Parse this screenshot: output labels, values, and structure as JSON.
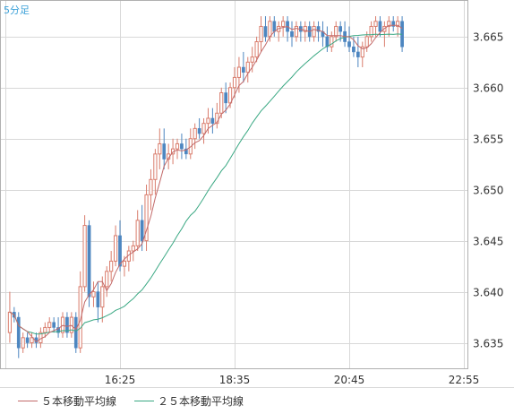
{
  "chart_data": {
    "type": "candlestick",
    "period_label": "5分足",
    "y_ticks": [
      "3.665",
      "3.660",
      "3.655",
      "3.650",
      "3.645",
      "3.640",
      "3.635"
    ],
    "x_ticks": [
      "16:25",
      "18:35",
      "20:45",
      "22:55"
    ],
    "ylim": [
      3.6325,
      3.6685
    ],
    "grid": true,
    "legend_position": "bottom-left",
    "legend": [
      {
        "name": "５本移動平均線",
        "color": "#c26a6a"
      },
      {
        "name": "２５本移動平均線",
        "color": "#3aa883"
      }
    ],
    "colors": {
      "up": "#d97c6c",
      "down": "#4d86c0",
      "grid": "#d8d8d8",
      "frame": "#b0b0b0"
    },
    "candles_ohlc": [
      [
        3.636,
        3.64,
        3.635,
        3.638
      ],
      [
        3.638,
        3.6385,
        3.637,
        3.6375
      ],
      [
        3.6375,
        3.638,
        3.6335,
        3.6345
      ],
      [
        3.6345,
        3.636,
        3.634,
        3.6355
      ],
      [
        3.6355,
        3.636,
        3.6345,
        3.635
      ],
      [
        3.635,
        3.636,
        3.6345,
        3.6355
      ],
      [
        3.6355,
        3.636,
        3.6345,
        3.635
      ],
      [
        3.635,
        3.6365,
        3.6345,
        3.636
      ],
      [
        3.636,
        3.637,
        3.6355,
        3.6365
      ],
      [
        3.6365,
        3.6375,
        3.636,
        3.637
      ],
      [
        3.637,
        3.6375,
        3.636,
        3.6365
      ],
      [
        3.6365,
        3.6375,
        3.6355,
        3.636
      ],
      [
        3.636,
        3.638,
        3.6355,
        3.6375
      ],
      [
        3.6375,
        3.638,
        3.6355,
        3.636
      ],
      [
        3.636,
        3.638,
        3.6355,
        3.6375
      ],
      [
        3.6375,
        3.638,
        3.634,
        3.6345
      ],
      [
        3.6345,
        3.642,
        3.634,
        3.6405
      ],
      [
        3.6405,
        3.6475,
        3.64,
        3.6465
      ],
      [
        3.6465,
        3.647,
        3.6385,
        3.6395
      ],
      [
        3.6395,
        3.641,
        3.6385,
        3.64
      ],
      [
        3.64,
        3.641,
        3.637,
        3.6385
      ],
      [
        3.6385,
        3.6415,
        3.637,
        3.6405
      ],
      [
        3.6405,
        3.6425,
        3.6395,
        3.642
      ],
      [
        3.642,
        3.644,
        3.641,
        3.643
      ],
      [
        3.643,
        3.6465,
        3.6425,
        3.6455
      ],
      [
        3.6455,
        3.647,
        3.642,
        3.6425
      ],
      [
        3.6425,
        3.6435,
        3.6415,
        3.643
      ],
      [
        3.643,
        3.6445,
        3.642,
        3.644
      ],
      [
        3.644,
        3.645,
        3.643,
        3.6445
      ],
      [
        3.6445,
        3.648,
        3.644,
        3.647
      ],
      [
        3.647,
        3.6485,
        3.644,
        3.645
      ],
      [
        3.645,
        3.6505,
        3.644,
        3.6495
      ],
      [
        3.6495,
        3.652,
        3.648,
        3.651
      ],
      [
        3.651,
        3.654,
        3.6495,
        3.6535
      ],
      [
        3.6535,
        3.656,
        3.652,
        3.6545
      ],
      [
        3.6545,
        3.656,
        3.652,
        3.653
      ],
      [
        3.653,
        3.6545,
        3.652,
        3.6535
      ],
      [
        3.6535,
        3.655,
        3.6525,
        3.654
      ],
      [
        3.654,
        3.655,
        3.653,
        3.6545
      ],
      [
        3.6545,
        3.6555,
        3.653,
        3.654
      ],
      [
        3.654,
        3.655,
        3.653,
        3.6535
      ],
      [
        3.6535,
        3.656,
        3.653,
        3.655
      ],
      [
        3.655,
        3.6565,
        3.654,
        3.656
      ],
      [
        3.656,
        3.657,
        3.655,
        3.6555
      ],
      [
        3.6555,
        3.657,
        3.6545,
        3.6565
      ],
      [
        3.6565,
        3.658,
        3.6555,
        3.657
      ],
      [
        3.657,
        3.658,
        3.6555,
        3.6565
      ],
      [
        3.6565,
        3.6585,
        3.656,
        3.6575
      ],
      [
        3.6575,
        3.66,
        3.657,
        3.6595
      ],
      [
        3.6595,
        3.6605,
        3.6575,
        3.6585
      ],
      [
        3.6585,
        3.6605,
        3.658,
        3.66
      ],
      [
        3.66,
        3.662,
        3.659,
        3.661
      ],
      [
        3.661,
        3.663,
        3.6595,
        3.662
      ],
      [
        3.662,
        3.6635,
        3.6605,
        3.6615
      ],
      [
        3.6615,
        3.663,
        3.6605,
        3.6625
      ],
      [
        3.6625,
        3.664,
        3.6615,
        3.663
      ],
      [
        3.663,
        3.665,
        3.6625,
        3.6645
      ],
      [
        3.6645,
        3.667,
        3.6635,
        3.666
      ],
      [
        3.666,
        3.667,
        3.6645,
        3.665
      ],
      [
        3.665,
        3.667,
        3.6645,
        3.6665
      ],
      [
        3.6665,
        3.667,
        3.665,
        3.6655
      ],
      [
        3.6655,
        3.6665,
        3.6645,
        3.666
      ],
      [
        3.666,
        3.667,
        3.665,
        3.6665
      ],
      [
        3.6665,
        3.667,
        3.6645,
        3.6655
      ],
      [
        3.6655,
        3.6665,
        3.664,
        3.665
      ],
      [
        3.665,
        3.6665,
        3.6645,
        3.666
      ],
      [
        3.666,
        3.6665,
        3.6645,
        3.6655
      ],
      [
        3.6655,
        3.6665,
        3.6645,
        3.666
      ],
      [
        3.666,
        3.6665,
        3.6645,
        3.665
      ],
      [
        3.665,
        3.6665,
        3.6645,
        3.666
      ],
      [
        3.666,
        3.6665,
        3.6645,
        3.6655
      ],
      [
        3.6655,
        3.6665,
        3.664,
        3.665
      ],
      [
        3.665,
        3.666,
        3.6635,
        3.664
      ],
      [
        3.664,
        3.6655,
        3.6635,
        3.665
      ],
      [
        3.665,
        3.6665,
        3.6645,
        3.666
      ],
      [
        3.666,
        3.6665,
        3.6645,
        3.6655
      ],
      [
        3.6655,
        3.6665,
        3.664,
        3.6645
      ],
      [
        3.6645,
        3.666,
        3.6635,
        3.664
      ],
      [
        3.664,
        3.665,
        3.663,
        3.6635
      ],
      [
        3.6635,
        3.665,
        3.662,
        3.663
      ],
      [
        3.663,
        3.6645,
        3.662,
        3.664
      ],
      [
        3.664,
        3.6655,
        3.6635,
        3.665
      ],
      [
        3.665,
        3.6665,
        3.6645,
        3.666
      ],
      [
        3.666,
        3.667,
        3.665,
        3.6665
      ],
      [
        3.6665,
        3.667,
        3.665,
        3.6655
      ],
      [
        3.6655,
        3.6665,
        3.664,
        3.666
      ],
      [
        3.666,
        3.667,
        3.665,
        3.6665
      ],
      [
        3.6665,
        3.667,
        3.6655,
        3.666
      ],
      [
        3.666,
        3.667,
        3.665,
        3.6665
      ],
      [
        3.6665,
        3.667,
        3.6635,
        3.664
      ]
    ]
  }
}
